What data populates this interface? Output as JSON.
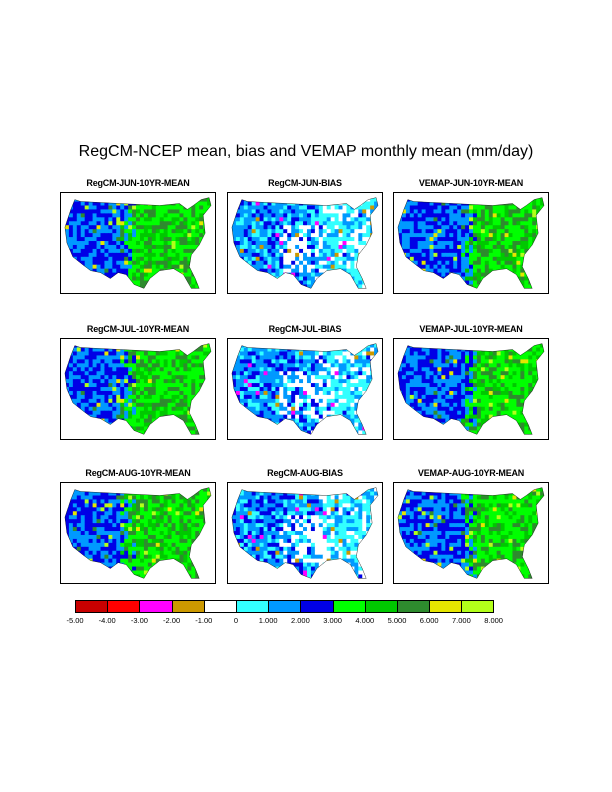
{
  "title": "RegCM-NCEP mean, bias and VEMAP monthly mean (mm/day)",
  "panels": [
    {
      "label": "RegCM-JUN-10YR-MEAN",
      "kind": "mean"
    },
    {
      "label": "RegCM-JUN-BIAS",
      "kind": "bias"
    },
    {
      "label": "VEMAP-JUN-10YR-MEAN",
      "kind": "mean"
    },
    {
      "label": "RegCM-JUL-10YR-MEAN",
      "kind": "mean"
    },
    {
      "label": "RegCM-JUL-BIAS",
      "kind": "bias"
    },
    {
      "label": "VEMAP-JUL-10YR-MEAN",
      "kind": "mean"
    },
    {
      "label": "RegCM-AUG-10YR-MEAN",
      "kind": "mean"
    },
    {
      "label": "RegCM-AUG-BIAS",
      "kind": "bias"
    },
    {
      "label": "VEMAP-AUG-10YR-MEAN",
      "kind": "mean"
    }
  ],
  "colorbar": {
    "colors": [
      "#c80000",
      "#ff0000",
      "#ff00ff",
      "#cc9900",
      "#ffffff",
      "#33ffff",
      "#0099ff",
      "#0000e6",
      "#00ff00",
      "#00c800",
      "#2e8b2e",
      "#e6e600",
      "#b3ff1a"
    ],
    "labels": [
      "-5.00",
      "-4.00",
      "-3.00",
      "-2.00",
      "-1.00",
      "0",
      "1.000",
      "2.000",
      "3.000",
      "4.000",
      "5.000",
      "6.000",
      "7.000",
      "8.000"
    ]
  }
}
